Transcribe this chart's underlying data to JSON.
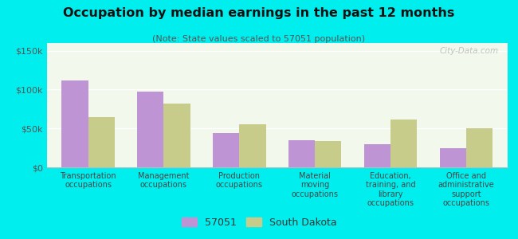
{
  "title": "Occupation by median earnings in the past 12 months",
  "subtitle": "(Note: State values scaled to 57051 population)",
  "categories": [
    "Transportation\noccupations",
    "Management\noccupations",
    "Production\noccupations",
    "Material\nmoving\noccupations",
    "Education,\ntraining, and\nlibrary\noccupations",
    "Office and\nadministrative\nsupport\noccupations"
  ],
  "values_57051": [
    112000,
    97000,
    44000,
    35000,
    30000,
    25000
  ],
  "values_sd": [
    65000,
    82000,
    55000,
    34000,
    62000,
    50000
  ],
  "color_57051": "#bf94d4",
  "color_sd": "#c8cc8a",
  "ylim": [
    0,
    160000
  ],
  "yticks": [
    0,
    50000,
    100000,
    150000
  ],
  "ytick_labels": [
    "$0",
    "$50k",
    "$100k",
    "$150k"
  ],
  "legend_57051": "57051",
  "legend_sd": "South Dakota",
  "background_color": "#00eeee",
  "watermark": "City-Data.com"
}
